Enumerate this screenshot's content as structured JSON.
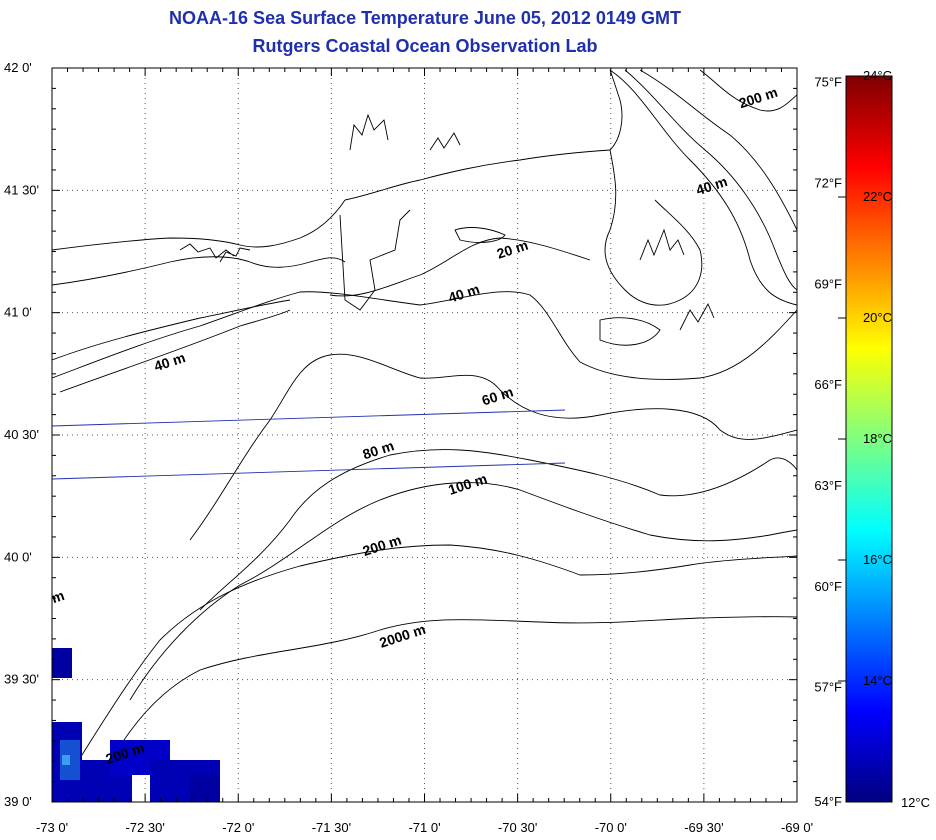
{
  "title": "NOAA-16 Sea Surface Temperature June 05, 2012 0149 GMT",
  "subtitle": "Rutgers Coastal Ocean Observation Lab",
  "map": {
    "lon_range": [
      -73.0,
      -69.0
    ],
    "lat_range": [
      39.0,
      42.0
    ],
    "grid": true,
    "lon_ticks": [
      "-73 0'",
      "-72 30'",
      "-72 0'",
      "-71 30'",
      "-71 0'",
      "-70 30'",
      "-70 0'",
      "-69 30'",
      "-69 0'"
    ],
    "lat_ticks": [
      "42 0'",
      "41 30'",
      "41 0'",
      "40 30'",
      "40 0'",
      "39 30'",
      "39 0'"
    ],
    "contour_labels": [
      {
        "text": "200 m",
        "lon": -69.2,
        "lat": 41.86
      },
      {
        "text": "40 m",
        "lon": -69.45,
        "lat": 41.5
      },
      {
        "text": "20 m",
        "lon": -70.52,
        "lat": 41.24
      },
      {
        "text": "40 m",
        "lon": -70.78,
        "lat": 41.06
      },
      {
        "text": "40 m",
        "lon": -72.36,
        "lat": 40.78
      },
      {
        "text": "60 m",
        "lon": -70.6,
        "lat": 40.64
      },
      {
        "text": "80 m",
        "lon": -71.24,
        "lat": 40.42
      },
      {
        "text": "100 m",
        "lon": -70.76,
        "lat": 40.28
      },
      {
        "text": "200 m",
        "lon": -71.22,
        "lat": 40.03
      },
      {
        "text": "2000 m",
        "lon": -71.11,
        "lat": 39.66
      },
      {
        "text": "200 m",
        "lon": -72.6,
        "lat": 39.18
      },
      {
        "text": "m",
        "lon": -72.96,
        "lat": 39.82
      }
    ]
  },
  "colorbar": {
    "celsius_labels": [
      "24°C",
      "22°C",
      "20°C",
      "18°C",
      "16°C",
      "14°C",
      "12°C"
    ],
    "fahrenheit_labels": [
      "75°F",
      "72°F",
      "69°F",
      "66°F",
      "63°F",
      "60°F",
      "57°F",
      "54°F"
    ],
    "range_c": [
      12,
      24
    ],
    "colors": [
      "#00007f",
      "#0000ff",
      "#007fff",
      "#00ffff",
      "#7fff7f",
      "#ffff00",
      "#ff7f00",
      "#ff0000",
      "#7f0000"
    ]
  }
}
